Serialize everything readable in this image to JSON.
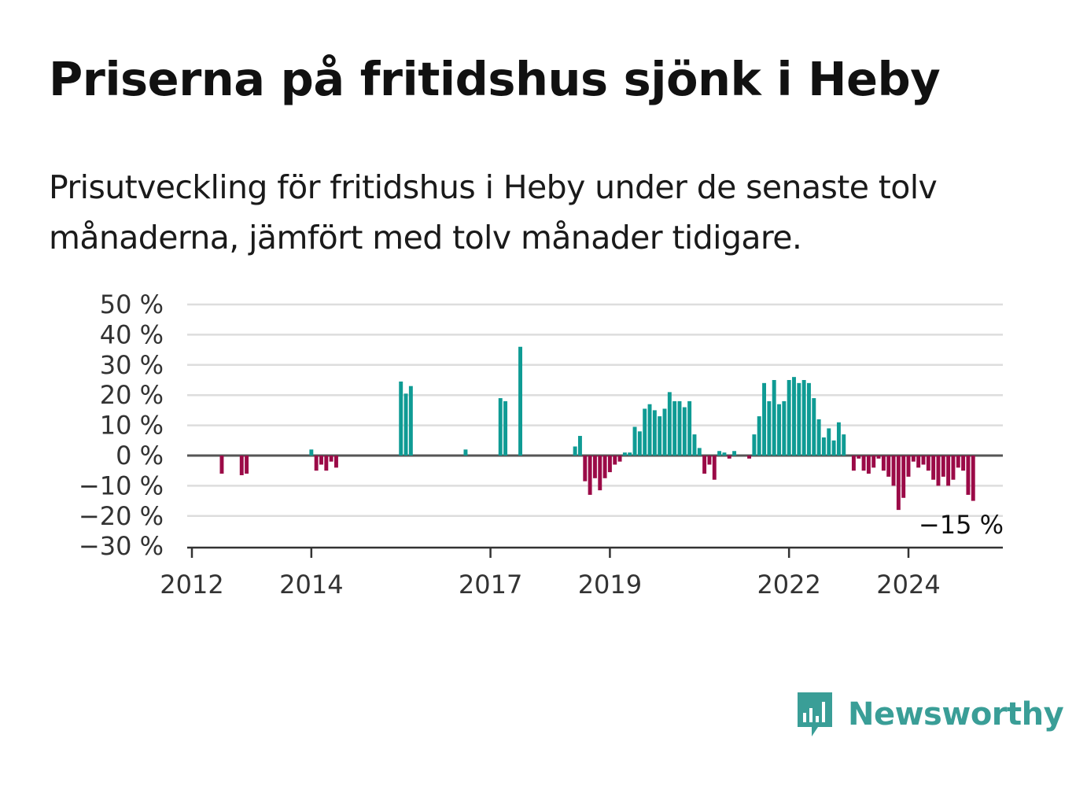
{
  "title": "Priserna på fritidshus sjönk i Heby",
  "subtitle": "Prisutveckling för fritidshus i Heby under de senaste tolv månaderna, jämfört med tolv månader tidigare.",
  "logo": {
    "text": "Newsworthy",
    "icon": "bar-chart-speech-bubble-icon"
  },
  "colors": {
    "positive": "#0f9b94",
    "negative": "#9b0a47",
    "gridline": "#dddddd",
    "zeroline": "#555555",
    "logo": "#3a9e97"
  },
  "chart_data": {
    "type": "bar",
    "title": "Priserna på fritidshus sjönk i Heby",
    "ylim": [
      -30,
      50
    ],
    "yticks": [
      -30,
      -20,
      -10,
      0,
      10,
      20,
      30,
      40,
      50
    ],
    "ytick_labels": [
      "−30 %",
      "−20 %",
      "−10 %",
      "0 %",
      "10 %",
      "20 %",
      "30 %",
      "40 %",
      "50 %"
    ],
    "xticks": [
      "2012",
      "2014",
      "2017",
      "2019",
      "2022",
      "2024"
    ],
    "grid": true,
    "last_value_label": "−15 %",
    "x_start": "2012-01",
    "x_end": "2025-08",
    "values": [
      null,
      null,
      null,
      null,
      null,
      null,
      -6,
      null,
      null,
      null,
      -6.5,
      -6,
      null,
      null,
      null,
      null,
      null,
      null,
      null,
      null,
      null,
      null,
      null,
      null,
      2,
      -5,
      -3,
      -5,
      -2,
      -4,
      null,
      null,
      null,
      null,
      null,
      null,
      null,
      null,
      null,
      null,
      null,
      null,
      null,
      null,
      null,
      null,
      null,
      null,
      null,
      null,
      null,
      null,
      null,
      null,
      null,
      null,
      null,
      null,
      null,
      null,
      null,
      null,
      null,
      null,
      null,
      null,
      null,
      null,
      null,
      null,
      null,
      null,
      null,
      null,
      null,
      null,
      null,
      null,
      null,
      null,
      null,
      null,
      null,
      null,
      null,
      null,
      null,
      null,
      null,
      null,
      null,
      null,
      null,
      null,
      null,
      null,
      null,
      null,
      null,
      null,
      null,
      null,
      null,
      null,
      null,
      null,
      null,
      null,
      null,
      null,
      null,
      null,
      null,
      null,
      null,
      null,
      null,
      null,
      null,
      null,
      null,
      null,
      null,
      null,
      null,
      null,
      null,
      null,
      null,
      null,
      null,
      null,
      null,
      null,
      null,
      null,
      null,
      null,
      null,
      null,
      null,
      null,
      null,
      null,
      null,
      null,
      null,
      null,
      null,
      null,
      null,
      null,
      null,
      null,
      null,
      null,
      null,
      null,
      null,
      null,
      null,
      null,
      null,
      null,
      null,
      null,
      null,
      null
    ],
    "monthly": [
      [
        "2012-07",
        -6
      ],
      [
        "2012-11",
        -6.5
      ],
      [
        "2012-12",
        -6
      ],
      [
        "2014-01",
        2
      ],
      [
        "2014-02",
        -5
      ],
      [
        "2014-03",
        -3
      ],
      [
        "2014-04",
        -5
      ],
      [
        "2014-05",
        -2
      ],
      [
        "2014-06",
        -4
      ],
      [
        "2015-07",
        24.5
      ],
      [
        "2015-08",
        20.5
      ],
      [
        "2015-09",
        23
      ],
      [
        "2016-08",
        2
      ],
      [
        "2017-03",
        19
      ],
      [
        "2017-04",
        18
      ],
      [
        "2017-07",
        36
      ],
      [
        "2018-06",
        3
      ],
      [
        "2018-07",
        6.5
      ],
      [
        "2018-08",
        -8.5
      ],
      [
        "2018-09",
        -13
      ],
      [
        "2018-10",
        -7.5
      ],
      [
        "2018-11",
        -11.5
      ],
      [
        "2018-12",
        -7.5
      ],
      [
        "2019-01",
        -5.5
      ],
      [
        "2019-02",
        -3
      ],
      [
        "2019-03",
        -2
      ],
      [
        "2019-04",
        1
      ],
      [
        "2019-05",
        1
      ],
      [
        "2019-06",
        9.5
      ],
      [
        "2019-07",
        8
      ],
      [
        "2019-08",
        15.5
      ],
      [
        "2019-09",
        17
      ],
      [
        "2019-10",
        15
      ],
      [
        "2019-11",
        13
      ],
      [
        "2019-12",
        15.5
      ],
      [
        "2020-01",
        21
      ],
      [
        "2020-02",
        18
      ],
      [
        "2020-03",
        18
      ],
      [
        "2020-04",
        16
      ],
      [
        "2020-05",
        18
      ],
      [
        "2020-06",
        7
      ],
      [
        "2020-07",
        2.5
      ],
      [
        "2020-08",
        -6
      ],
      [
        "2020-09",
        -3
      ],
      [
        "2020-10",
        -8
      ],
      [
        "2020-11",
        1.5
      ],
      [
        "2020-12",
        1
      ],
      [
        "2021-01",
        -1
      ],
      [
        "2021-02",
        1.5
      ],
      [
        "2021-05",
        -1
      ],
      [
        "2021-06",
        7
      ],
      [
        "2021-07",
        13
      ],
      [
        "2021-08",
        24
      ],
      [
        "2021-09",
        18
      ],
      [
        "2021-10",
        25
      ],
      [
        "2021-11",
        17
      ],
      [
        "2021-12",
        18
      ],
      [
        "2022-01",
        25
      ],
      [
        "2022-02",
        26
      ],
      [
        "2022-03",
        24
      ],
      [
        "2022-04",
        25
      ],
      [
        "2022-05",
        24
      ],
      [
        "2022-06",
        19
      ],
      [
        "2022-07",
        12
      ],
      [
        "2022-08",
        6
      ],
      [
        "2022-09",
        9
      ],
      [
        "2022-10",
        5
      ],
      [
        "2022-11",
        11
      ],
      [
        "2022-12",
        7
      ],
      [
        "2023-02",
        -5
      ],
      [
        "2023-03",
        -1
      ],
      [
        "2023-04",
        -5
      ],
      [
        "2023-05",
        -6
      ],
      [
        "2023-06",
        -4
      ],
      [
        "2023-07",
        -1
      ],
      [
        "2023-08",
        -5
      ],
      [
        "2023-09",
        -7
      ],
      [
        "2023-10",
        -10
      ],
      [
        "2023-11",
        -18
      ],
      [
        "2023-12",
        -14
      ],
      [
        "2024-01",
        -7
      ],
      [
        "2024-02",
        -2
      ],
      [
        "2024-03",
        -4
      ],
      [
        "2024-04",
        -3
      ],
      [
        "2024-05",
        -5
      ],
      [
        "2024-06",
        -8
      ],
      [
        "2024-07",
        -10
      ],
      [
        "2024-08",
        -7
      ],
      [
        "2024-09",
        -10
      ],
      [
        "2024-10",
        -8
      ],
      [
        "2024-11",
        -4
      ],
      [
        "2024-12",
        -5
      ],
      [
        "2025-01",
        -13
      ],
      [
        "2025-02",
        -15
      ]
    ]
  }
}
